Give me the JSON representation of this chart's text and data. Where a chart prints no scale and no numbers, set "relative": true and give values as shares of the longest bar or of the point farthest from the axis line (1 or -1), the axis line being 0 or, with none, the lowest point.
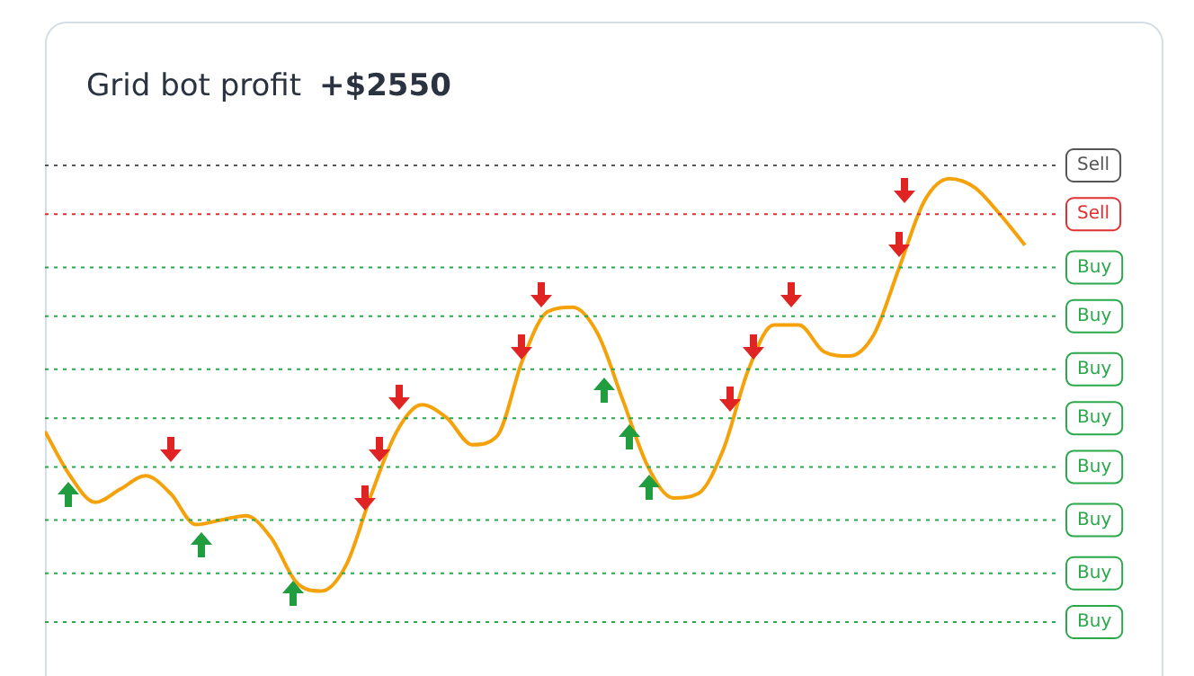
{
  "chart_data": {
    "type": "line",
    "title": "Grid bot profit",
    "subtitle": "+$2550",
    "relative": true,
    "legend": false,
    "marker": "none",
    "line_style": "solid",
    "categories": [
      null,
      null,
      null,
      null,
      null,
      null,
      null,
      null,
      null,
      null,
      null,
      null,
      null,
      null,
      null,
      null,
      null,
      null,
      null,
      null,
      null,
      null,
      null,
      null,
      null,
      null,
      null,
      null,
      null,
      null,
      null,
      null,
      null,
      null,
      null,
      null,
      null,
      null,
      null,
      null
    ],
    "series": [
      {
        "color": "#f5a20a",
        "values": [
          0.43,
          0.33,
          0.27,
          0.3,
          0.33,
          0.29,
          0.22,
          0.23,
          0.24,
          0.19,
          0.09,
          0.07,
          0.13,
          0.29,
          0.43,
          0.49,
          0.46,
          0.4,
          0.42,
          0.59,
          0.7,
          0.71,
          0.65,
          0.5,
          0.35,
          0.28,
          0.29,
          0.39,
          0.57,
          0.67,
          0.67,
          0.61,
          0.6,
          0.65,
          0.8,
          0.95,
          1,
          0.98,
          0.92,
          0.85
        ]
      }
    ],
    "ref_lines": [
      {
        "axis": "y",
        "value": 1.03,
        "label": "Sell",
        "color": "#555555",
        "line_style": "dotted"
      },
      {
        "axis": "y",
        "value": 0.92,
        "label": "Sell",
        "color": "#e03030",
        "line_style": "dotted"
      },
      {
        "axis": "y",
        "value": 0.8,
        "label": "Buy",
        "color": "#2aa84a",
        "line_style": "dotted"
      },
      {
        "axis": "y",
        "value": 0.69,
        "label": "Buy",
        "color": "#2aa84a",
        "line_style": "dotted"
      },
      {
        "axis": "y",
        "value": 0.57,
        "label": "Buy",
        "color": "#2aa84a",
        "line_style": "dotted"
      },
      {
        "axis": "y",
        "value": 0.46,
        "label": "Buy",
        "color": "#2aa84a",
        "line_style": "dotted"
      },
      {
        "axis": "y",
        "value": 0.35,
        "label": "Buy",
        "color": "#2aa84a",
        "line_style": "dotted"
      },
      {
        "axis": "y",
        "value": 0.23,
        "label": "Buy",
        "color": "#2aa84a",
        "line_style": "dotted"
      },
      {
        "axis": "y",
        "value": 0.11,
        "label": "Buy",
        "color": "#2aa84a",
        "line_style": "dotted"
      },
      {
        "axis": "y",
        "value": 0,
        "label": "Buy",
        "color": "#2aa84a",
        "line_style": "dotted"
      }
    ]
  }
}
